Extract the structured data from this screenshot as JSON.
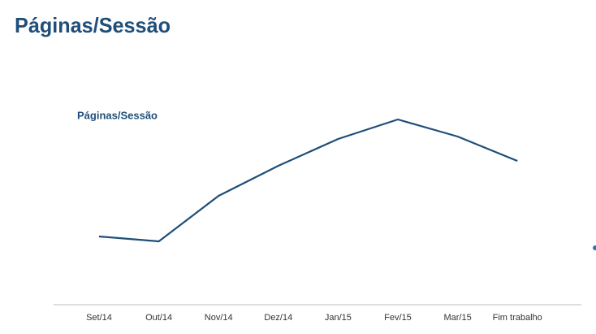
{
  "title": "Páginas/Sessão",
  "chart_data": {
    "type": "line",
    "title": "Páginas/Sessão",
    "categories": [
      "Set/14",
      "Out/14",
      "Nov/14",
      "Dez/14",
      "Jan/15",
      "Fev/15",
      "Mar/15",
      "Fim trabalho"
    ],
    "series": [
      {
        "name": "Páginas/Sessão",
        "color": "#1f4e79",
        "values": [
          0.84,
          0.78,
          1.34,
          1.71,
          2.04,
          2.28,
          2.07,
          1.77
        ]
      }
    ]
  }
}
